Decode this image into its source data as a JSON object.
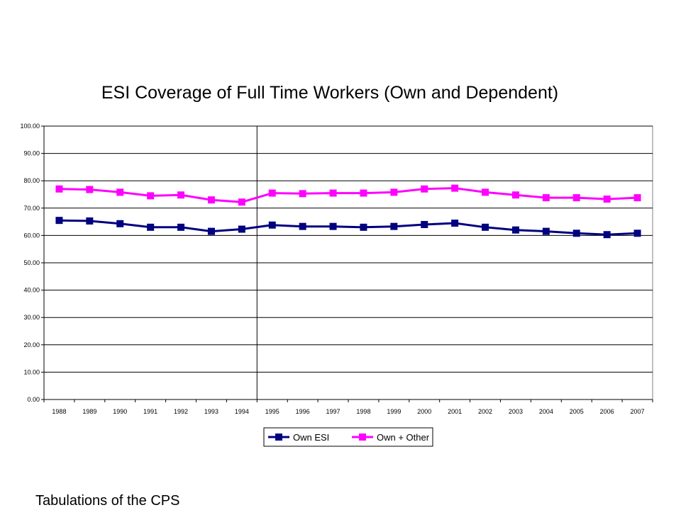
{
  "footer_text": "Tabulations of the CPS",
  "chart_data": {
    "type": "line",
    "title": "ESI Coverage of Full Time Workers (Own and Dependent)",
    "xlabel": "",
    "ylabel": "",
    "categories": [
      "1988",
      "1989",
      "1990",
      "1991",
      "1992",
      "1993",
      "1994",
      "1995",
      "1996",
      "1997",
      "1998",
      "1999",
      "2000",
      "2001",
      "2002",
      "2003",
      "2004",
      "2005",
      "2006",
      "2007"
    ],
    "ylim": [
      0,
      100
    ],
    "yticks": [
      "0.00",
      "10.00",
      "20.00",
      "30.00",
      "40.00",
      "50.00",
      "60.00",
      "70.00",
      "80.00",
      "90.00",
      "100.00"
    ],
    "grid": true,
    "vertical_marker_category": "1995",
    "legend_position": "bottom",
    "series": [
      {
        "name": "Own ESI",
        "color": "#000080",
        "values": [
          65.5,
          65.3,
          64.3,
          63.0,
          63.0,
          61.5,
          62.3,
          63.8,
          63.3,
          63.3,
          63.0,
          63.3,
          64.0,
          64.5,
          63.0,
          62.0,
          61.5,
          60.8,
          60.3,
          60.8
        ]
      },
      {
        "name": "Own + Other",
        "color": "#FF00FF",
        "values": [
          77.0,
          76.8,
          75.8,
          74.5,
          74.8,
          73.0,
          72.2,
          75.5,
          75.3,
          75.5,
          75.5,
          75.8,
          77.0,
          77.3,
          75.8,
          74.8,
          73.8,
          73.8,
          73.3,
          73.8
        ]
      }
    ]
  }
}
